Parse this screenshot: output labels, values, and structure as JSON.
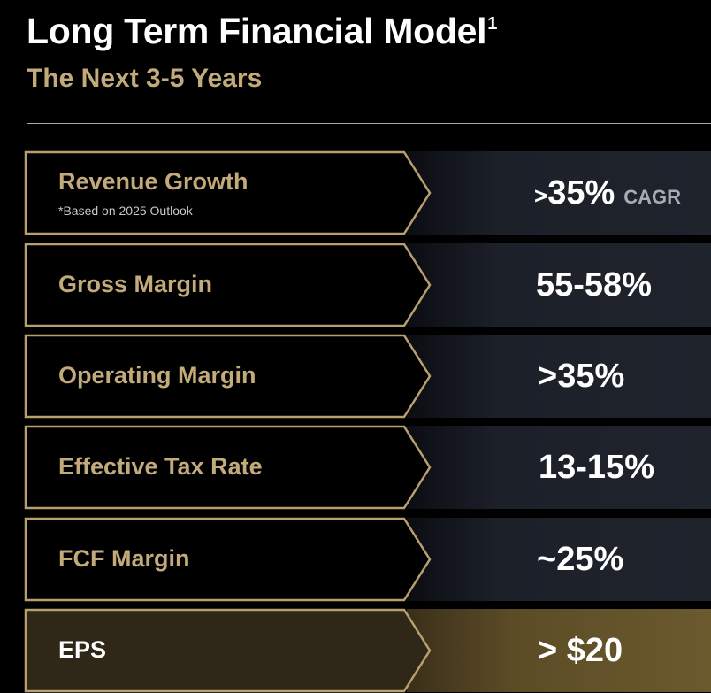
{
  "header": {
    "title": "Long Term Financial Model",
    "title_superscript": "1",
    "subtitle": "The Next 3-5 Years"
  },
  "rows": [
    {
      "label": "Revenue Growth",
      "note": "*Based on 2025 Outlook",
      "value_prefix": ">",
      "value": "35%",
      "unit": "CAGR"
    },
    {
      "label": "Gross Margin",
      "value": "55-58%"
    },
    {
      "label": "Operating Margin",
      "value": ">35%"
    },
    {
      "label": "Effective Tax Rate",
      "value": "13-15%"
    },
    {
      "label": "FCF Margin",
      "value": "~25%"
    },
    {
      "label": "EPS",
      "value": "> $20"
    }
  ],
  "colors": {
    "background": "#000000",
    "gold_text": "#c2aa7a",
    "gold_border": "#b89f6e",
    "row_fill": "#1f232c",
    "eps_fill": "#6b5a2e"
  }
}
